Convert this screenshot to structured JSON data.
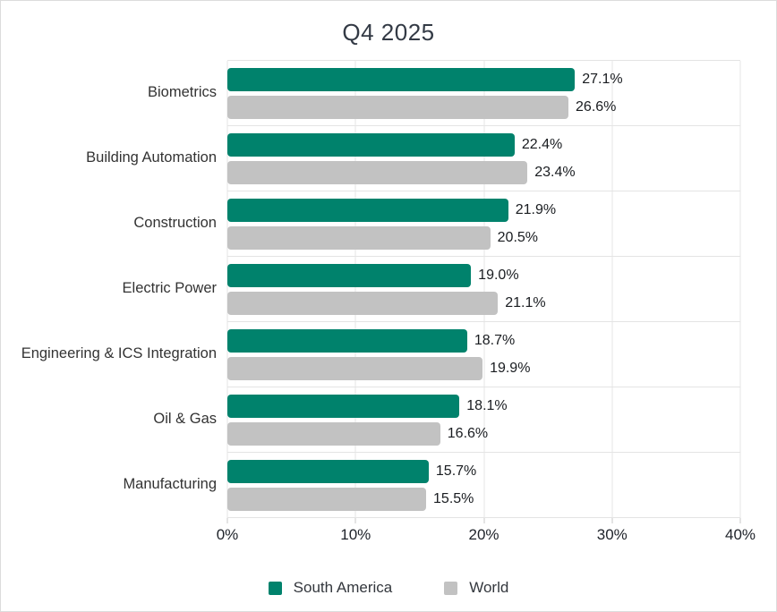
{
  "title": "Q4 2025",
  "chart_data": {
    "type": "bar",
    "orientation": "horizontal",
    "title": "Q4 2025",
    "categories": [
      "Biometrics",
      "Building Automation",
      "Construction",
      "Electric Power",
      "Engineering & ICS Integration",
      "Oil & Gas",
      "Manufacturing"
    ],
    "series": [
      {
        "name": "South America",
        "color": "#00826C",
        "values": [
          27.1,
          22.4,
          21.9,
          19.0,
          18.7,
          18.1,
          15.7
        ],
        "labels": [
          "27.1%",
          "22.4%",
          "21.9%",
          "19.0%",
          "18.7%",
          "18.1%",
          "15.7%"
        ]
      },
      {
        "name": "World",
        "color": "#C2C2C2",
        "values": [
          26.6,
          23.4,
          20.5,
          21.1,
          19.9,
          16.6,
          15.5
        ],
        "labels": [
          "26.6%",
          "23.4%",
          "20.5%",
          "21.1%",
          "19.9%",
          "16.6%",
          "15.5%"
        ]
      }
    ],
    "value_suffix": "%",
    "xlim": [
      0,
      40
    ],
    "x_ticks": [
      "0%",
      "10%",
      "20%",
      "30%",
      "40%"
    ],
    "x_tick_values": [
      0,
      10,
      20,
      30,
      40
    ],
    "grid": "on",
    "legend_position": "bottom",
    "xlabel": "",
    "ylabel": ""
  }
}
